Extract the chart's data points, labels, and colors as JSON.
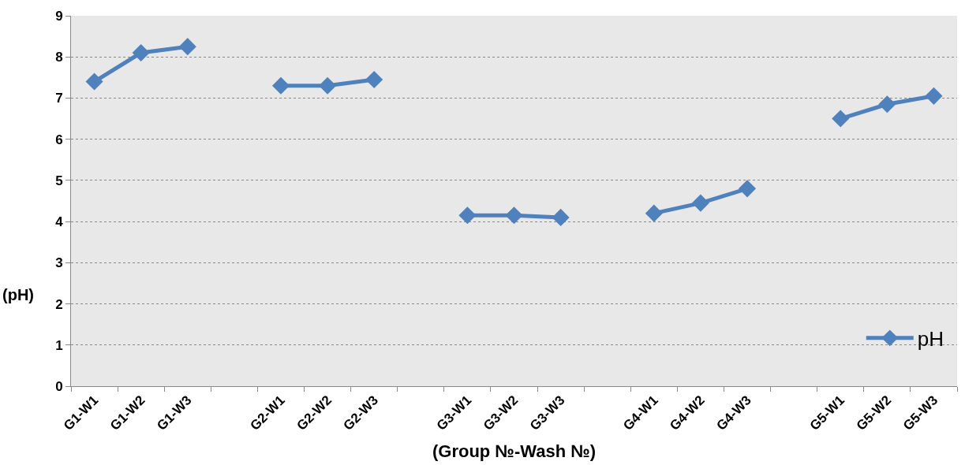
{
  "chart_data": {
    "type": "line",
    "xlabel": "(Group №-Wash №)",
    "ylabel": "(pH)",
    "categories": [
      "G1-W1",
      "G1-W2",
      "G1-W3",
      null,
      "G2-W1",
      "G2-W2",
      "G2-W3",
      null,
      "G3-W1",
      "G3-W2",
      "G3-W3",
      null,
      "G4-W1",
      "G4-W2",
      "G4-W3",
      null,
      "G5-W1",
      "G5-W2",
      "G5-W3"
    ],
    "series": [
      {
        "name": "pH",
        "color": "#4f81bd",
        "values": [
          7.4,
          8.1,
          8.25,
          null,
          7.3,
          7.3,
          7.45,
          null,
          4.15,
          4.15,
          4.1,
          null,
          4.2,
          4.45,
          4.8,
          null,
          6.5,
          6.85,
          7.05
        ]
      }
    ],
    "ylim": [
      0,
      9
    ],
    "yticks": [
      0,
      1,
      2,
      3,
      4,
      5,
      6,
      7,
      8,
      9
    ],
    "grid": "y",
    "legend": "bottom right",
    "marker": "diamond",
    "line_style": "solid"
  }
}
